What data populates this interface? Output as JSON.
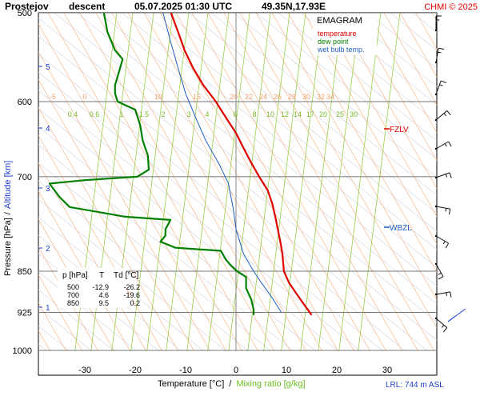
{
  "header": {
    "station": "Prostejov",
    "mode": "descent",
    "datetime": "05.07.2025 01:30 UTC",
    "coords": "49.35N,17.93E",
    "copyright": "CHMI © 2025"
  },
  "legend": {
    "title": "EMAGRAM",
    "temperature": "temperature",
    "dew_point": "dew point",
    "wet_bulb": "wet bulb temp.",
    "colors": {
      "temperature": "#e00000",
      "dew_point": "#008000",
      "wet_bulb": "#1f5fbf"
    }
  },
  "axes": {
    "y_label_left": "Pressure [hPa]",
    "y_separator": "/",
    "y_label_right": "Altitude [km]",
    "x_label_left": "Temperature [°C]",
    "x_separator": "/",
    "x_label_right": "Mixing ratio [g/kg]",
    "pressure_ticks": [
      "500",
      "600",
      "700",
      "850",
      "925",
      "1000"
    ],
    "altitude_ticks": [
      "5",
      "4",
      "3",
      "2",
      "1"
    ],
    "temperature_ticks": [
      "-30",
      "-20",
      "-10",
      "0",
      "10",
      "20",
      "30"
    ]
  },
  "table": {
    "headers": [
      "p [hPa]",
      "T",
      "Td [°C]"
    ],
    "rows": [
      [
        "500",
        "-12.9",
        "-26.2"
      ],
      [
        "700",
        "4.6",
        "-19.6"
      ],
      [
        "850",
        "9.5",
        "0.2"
      ]
    ]
  },
  "markers": {
    "fzlv": "FZLV",
    "wbzl": "WBZL",
    "lrl": "LRL: 744 m ASL"
  },
  "chart_data": {
    "type": "line",
    "title": "EMAGRAM",
    "xlabel": "Temperature [°C] / Mixing ratio [g/kg]",
    "ylabel": "Pressure [hPa] / Altitude [km]",
    "xlim": [
      -39,
      40
    ],
    "ylim_pressure_hpa": [
      1000,
      500
    ],
    "y_scale": "log-pressure",
    "grid": true,
    "legend_position": "top-right",
    "dry_adiabat_labels": [
      "-5",
      "0",
      "10",
      "15",
      "20",
      "22",
      "24",
      "26",
      "28",
      "30",
      "32",
      "34"
    ],
    "mixing_ratio_labels": [
      "0.4",
      "0.6",
      "1",
      "1.5",
      "2",
      "3",
      "4",
      "6",
      "8",
      "10",
      "12",
      "14",
      "17",
      "20",
      "25",
      "30"
    ],
    "freezing_level_hpa": 645,
    "wet_bulb_zero_level_hpa": 780,
    "series": [
      {
        "name": "temperature",
        "points": [
          [
            -12.9,
            500
          ],
          [
            -11.5,
            520
          ],
          [
            -10.2,
            540
          ],
          [
            -8.5,
            560
          ],
          [
            -6.5,
            580
          ],
          [
            -4,
            600
          ],
          [
            -2,
            620
          ],
          [
            0,
            640
          ],
          [
            1.5,
            660
          ],
          [
            3,
            680
          ],
          [
            4.6,
            700
          ],
          [
            6.3,
            720
          ],
          [
            7.2,
            740
          ],
          [
            7.8,
            760
          ],
          [
            8.3,
            780
          ],
          [
            8.8,
            800
          ],
          [
            9.2,
            820
          ],
          [
            9.5,
            850
          ],
          [
            10.5,
            870
          ],
          [
            12,
            890
          ],
          [
            13.5,
            910
          ],
          [
            15,
            930
          ]
        ]
      },
      {
        "name": "dew point",
        "points": [
          [
            -26.2,
            500
          ],
          [
            -25.5,
            520
          ],
          [
            -24,
            540
          ],
          [
            -22.5,
            550
          ],
          [
            -23,
            560
          ],
          [
            -23.5,
            570
          ],
          [
            -24,
            580
          ],
          [
            -24,
            590
          ],
          [
            -23.5,
            600
          ],
          [
            -20,
            610
          ],
          [
            -19,
            630
          ],
          [
            -18.5,
            650
          ],
          [
            -17.5,
            670
          ],
          [
            -17.3,
            690
          ],
          [
            -19.6,
            700
          ],
          [
            -30,
            705
          ],
          [
            -37,
            710
          ],
          [
            -35,
            730
          ],
          [
            -33,
            745
          ],
          [
            -22,
            760
          ],
          [
            -13,
            765
          ],
          [
            -14,
            780
          ],
          [
            -14,
            790
          ],
          [
            -15,
            800
          ],
          [
            -12,
            810
          ],
          [
            -3,
            815
          ],
          [
            -2,
            830
          ],
          [
            -1,
            840
          ],
          [
            0.2,
            850
          ],
          [
            2,
            860
          ],
          [
            2,
            880
          ],
          [
            3,
            900
          ],
          [
            3.5,
            920
          ],
          [
            3.5,
            930
          ]
        ]
      },
      {
        "name": "wet bulb temp.",
        "points": [
          [
            -14.5,
            500
          ],
          [
            -13,
            530
          ],
          [
            -11.5,
            560
          ],
          [
            -10,
            590
          ],
          [
            -8,
            620
          ],
          [
            -6,
            650
          ],
          [
            -3.5,
            680
          ],
          [
            -1.5,
            710
          ],
          [
            -0.5,
            750
          ],
          [
            0,
            780
          ],
          [
            1.5,
            820
          ],
          [
            3.5,
            850
          ],
          [
            5,
            870
          ],
          [
            7,
            895
          ],
          [
            9,
            925
          ]
        ]
      }
    ]
  },
  "wind_barbs": [
    {
      "name": "wind-barb-1",
      "kind": "barb"
    },
    {
      "name": "wind-barb-2",
      "kind": "barb"
    },
    {
      "name": "wind-barb-3",
      "kind": "barb"
    },
    {
      "name": "wind-barb-4",
      "kind": "barb"
    },
    {
      "name": "wind-barb-5",
      "kind": "barb"
    },
    {
      "name": "wind-barb-6",
      "kind": "barb"
    },
    {
      "name": "wind-barb-7",
      "kind": "barb"
    },
    {
      "name": "wind-barb-8",
      "kind": "barb"
    },
    {
      "name": "wind-barb-9",
      "kind": "barb"
    },
    {
      "name": "wind-barb-10",
      "kind": "barb"
    },
    {
      "name": "wind-barb-11",
      "kind": "barb"
    },
    {
      "name": "wind-barb-12",
      "kind": "barb"
    }
  ]
}
